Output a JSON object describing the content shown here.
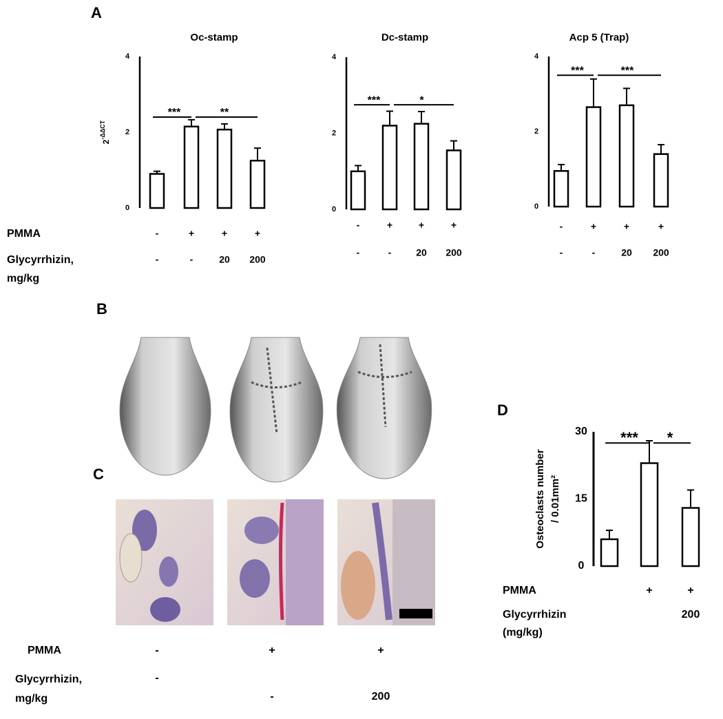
{
  "chart_data": [
    {
      "type": "bar",
      "title": "Oc-stamp",
      "ylabel": {
        "base": "2",
        "sup": "-ΔΔCT"
      },
      "values": [
        0.9,
        2.15,
        2.07,
        1.25
      ],
      "errors": [
        0.07,
        0.18,
        0.15,
        0.33
      ],
      "ylim": [
        0,
        4
      ],
      "yticks": [
        0,
        2,
        4
      ],
      "color": "#ffffff",
      "significance": [
        {
          "label": "***",
          "from": 0,
          "to": 1,
          "y": 2.4
        },
        {
          "label": "**",
          "from": 1,
          "to": 3,
          "y": 2.4
        }
      ],
      "treatments": [
        [
          "-",
          "+",
          "+",
          "+"
        ],
        [
          "-",
          "-",
          "20",
          "200"
        ]
      ]
    },
    {
      "type": "bar",
      "title": "Dc-stamp",
      "values": [
        1.0,
        2.2,
        2.25,
        1.55
      ],
      "errors": [
        0.15,
        0.38,
        0.32,
        0.25
      ],
      "ylim": [
        0,
        4
      ],
      "yticks": [
        0,
        2,
        4
      ],
      "color": "#ffffff",
      "significance": [
        {
          "label": "***",
          "from": 0,
          "to": 1,
          "y": 2.75
        },
        {
          "label": "*",
          "from": 1,
          "to": 3,
          "y": 2.75
        }
      ],
      "treatments": [
        [
          "-",
          "+",
          "+",
          "+"
        ],
        [
          "-",
          "-",
          "20",
          "200"
        ]
      ]
    },
    {
      "type": "bar",
      "title": "Acp 5 (Trap)",
      "values": [
        0.95,
        2.65,
        2.7,
        1.4
      ],
      "errors": [
        0.17,
        0.75,
        0.45,
        0.25
      ],
      "ylim": [
        0,
        4
      ],
      "yticks": [
        0,
        2,
        4
      ],
      "color": "#ffffff",
      "significance": [
        {
          "label": "***",
          "from": 0,
          "to": 1,
          "y": 3.5
        },
        {
          "label": "***",
          "from": 1,
          "to": 3,
          "y": 3.5
        }
      ],
      "treatments": [
        [
          "-",
          "+",
          "+",
          "+"
        ],
        [
          "-",
          "-",
          "20",
          "200"
        ]
      ]
    },
    {
      "type": "bar",
      "ylabel": [
        "Osteoclasts number",
        "/ 0.01mm²"
      ],
      "values": [
        6,
        23,
        13
      ],
      "errors": [
        2,
        5,
        4
      ],
      "ylim": [
        0,
        30
      ],
      "yticks": [
        0,
        15,
        30
      ],
      "color": "#ffffff",
      "significance": [
        {
          "label": "***",
          "from": 0,
          "to": 1,
          "y": 27.5
        },
        {
          "label": "*",
          "from": 1,
          "to": 2,
          "y": 27.5
        }
      ],
      "treatments": [
        [
          null,
          "+",
          "+"
        ],
        [
          null,
          null,
          "200"
        ]
      ]
    }
  ],
  "panel_a": {
    "letter": "A",
    "row_labels": [
      "PMMA",
      [
        "Glycyrrhizin,",
        "mg/kg"
      ]
    ]
  },
  "panel_b": {
    "letter": "B"
  },
  "panel_c": {
    "letter": "C",
    "row_labels": [
      "PMMA",
      [
        "Glycyrrhizin,",
        "mg/kg"
      ]
    ],
    "treatments": [
      [
        "-",
        "+",
        "+"
      ],
      [
        "-",
        "-",
        "200"
      ]
    ]
  },
  "panel_d": {
    "letter": "D",
    "row_labels": [
      "PMMA",
      [
        "Glycyrrhizin",
        "(mg/kg)"
      ]
    ]
  }
}
